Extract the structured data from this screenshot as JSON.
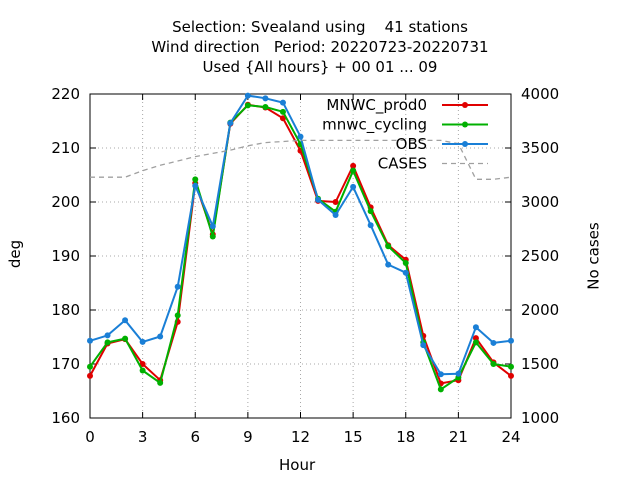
{
  "title_lines": [
    "Selection: Svealand using    41 stations",
    "Wind direction   Period: 20220723-20220731",
    "Used {All hours} + 00 01 ... 09"
  ],
  "colors": {
    "MNWC_prod0": "#e00000",
    "mnwc_cycling": "#00b000",
    "OBS": "#1a7fd6",
    "CASES": "#a0a0a0"
  },
  "chart_data": {
    "type": "line",
    "xlabel": "Hour",
    "ylabel": "deg",
    "y2label": "No cases",
    "xlim": [
      0,
      24
    ],
    "ylim": [
      160,
      220
    ],
    "y2lim": [
      1000,
      4000
    ],
    "xticks": [
      "0",
      "3",
      "6",
      "9",
      "12",
      "15",
      "18",
      "21",
      "24"
    ],
    "yticks": [
      "160",
      "170",
      "180",
      "190",
      "200",
      "210",
      "220"
    ],
    "y2ticks": [
      "1000",
      "1500",
      "2000",
      "2500",
      "3000",
      "3500",
      "4000"
    ],
    "grid": true,
    "legend_position": "top-right",
    "x": [
      0,
      1,
      2,
      3,
      4,
      5,
      6,
      7,
      8,
      9,
      10,
      11,
      12,
      13,
      14,
      15,
      16,
      17,
      18,
      19,
      20,
      21,
      22,
      23,
      24
    ],
    "series": [
      {
        "name": "MNWC_prod0",
        "axis": "y",
        "style": "line-points",
        "values": [
          167.8,
          173.8,
          174.6,
          170.0,
          167.0,
          177.8,
          203.5,
          194.0,
          214.5,
          218.0,
          217.5,
          215.5,
          209.5,
          200.2,
          200.0,
          206.7,
          199.0,
          192.0,
          189.3,
          175.2,
          166.4,
          167.0,
          174.8,
          170.3,
          167.8
        ]
      },
      {
        "name": "mnwc_cycling",
        "axis": "y",
        "style": "line-points",
        "values": [
          169.5,
          174.0,
          174.7,
          168.8,
          166.5,
          179.0,
          204.2,
          193.6,
          214.7,
          217.9,
          217.6,
          216.7,
          210.7,
          200.6,
          198.2,
          205.8,
          198.3,
          191.8,
          188.7,
          174.0,
          165.3,
          167.5,
          174.0,
          170.0,
          169.5
        ]
      },
      {
        "name": "OBS",
        "axis": "y",
        "style": "line-points",
        "values": [
          174.3,
          175.3,
          178.1,
          174.1,
          175.1,
          184.3,
          203.0,
          195.5,
          214.6,
          219.7,
          219.2,
          218.4,
          212.1,
          200.4,
          197.6,
          202.8,
          195.7,
          188.4,
          186.9,
          173.5,
          168.1,
          168.2,
          176.8,
          173.9,
          174.3
        ]
      },
      {
        "name": "CASES",
        "axis": "y2",
        "style": "dashed",
        "values": [
          3230,
          3230,
          3230,
          3290,
          3340,
          3380,
          3420,
          3450,
          3480,
          3520,
          3550,
          3560,
          3570,
          3570,
          3570,
          3570,
          3570,
          3570,
          3570,
          3570,
          3570,
          3540,
          3210,
          3210,
          3230
        ]
      }
    ]
  }
}
